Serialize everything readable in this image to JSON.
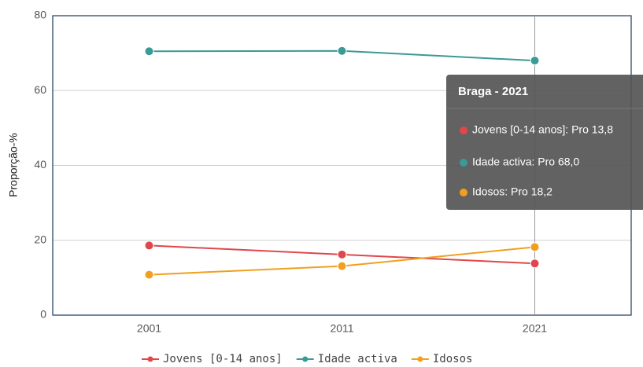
{
  "chart_data": {
    "type": "line",
    "ylabel": "Proporção-%",
    "categories": [
      "2001",
      "2011",
      "2021"
    ],
    "series": [
      {
        "name": "Jovens [0-14 anos]",
        "color": "#e0474c",
        "values": [
          18.6,
          16.2,
          13.8
        ]
      },
      {
        "name": "Idade activa",
        "color": "#3a9a96",
        "values": [
          70.5,
          70.6,
          68.0
        ]
      },
      {
        "name": "Idosos",
        "color": "#f0a01e",
        "values": [
          10.8,
          13.1,
          18.2
        ]
      }
    ],
    "ylim": [
      0,
      80
    ],
    "yticks": [
      0,
      20,
      40,
      60,
      80
    ],
    "grid": true,
    "legend": "bottom",
    "tooltip": {
      "title": "Braga - 2021",
      "items": [
        "Jovens [0-14 anos]: Pro 13,8",
        "Idade activa: Pro 68,0",
        "Idosos: Pro 18,2"
      ]
    }
  }
}
